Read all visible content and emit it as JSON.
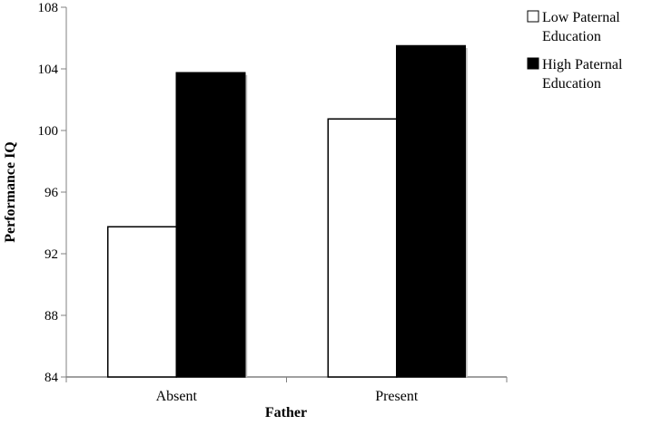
{
  "chart_data": {
    "type": "bar",
    "categories": [
      "Absent",
      "Present"
    ],
    "series": [
      {
        "name": "Low Paternal Education",
        "values": [
          93.75,
          100.75
        ],
        "color": "#ffffff"
      },
      {
        "name": "High Paternal Education",
        "values": [
          103.75,
          105.5
        ],
        "color": "#000000"
      }
    ],
    "xlabel": "Father",
    "ylabel": "Performance IQ",
    "ylim": [
      84,
      108
    ],
    "yticks": [
      84,
      88,
      92,
      96,
      100,
      104,
      108
    ],
    "grid": false,
    "legend_placement": "top-right",
    "legend_lines": [
      [
        "Low Paternal",
        "Education"
      ],
      [
        "High Paternal",
        "Education"
      ]
    ]
  }
}
